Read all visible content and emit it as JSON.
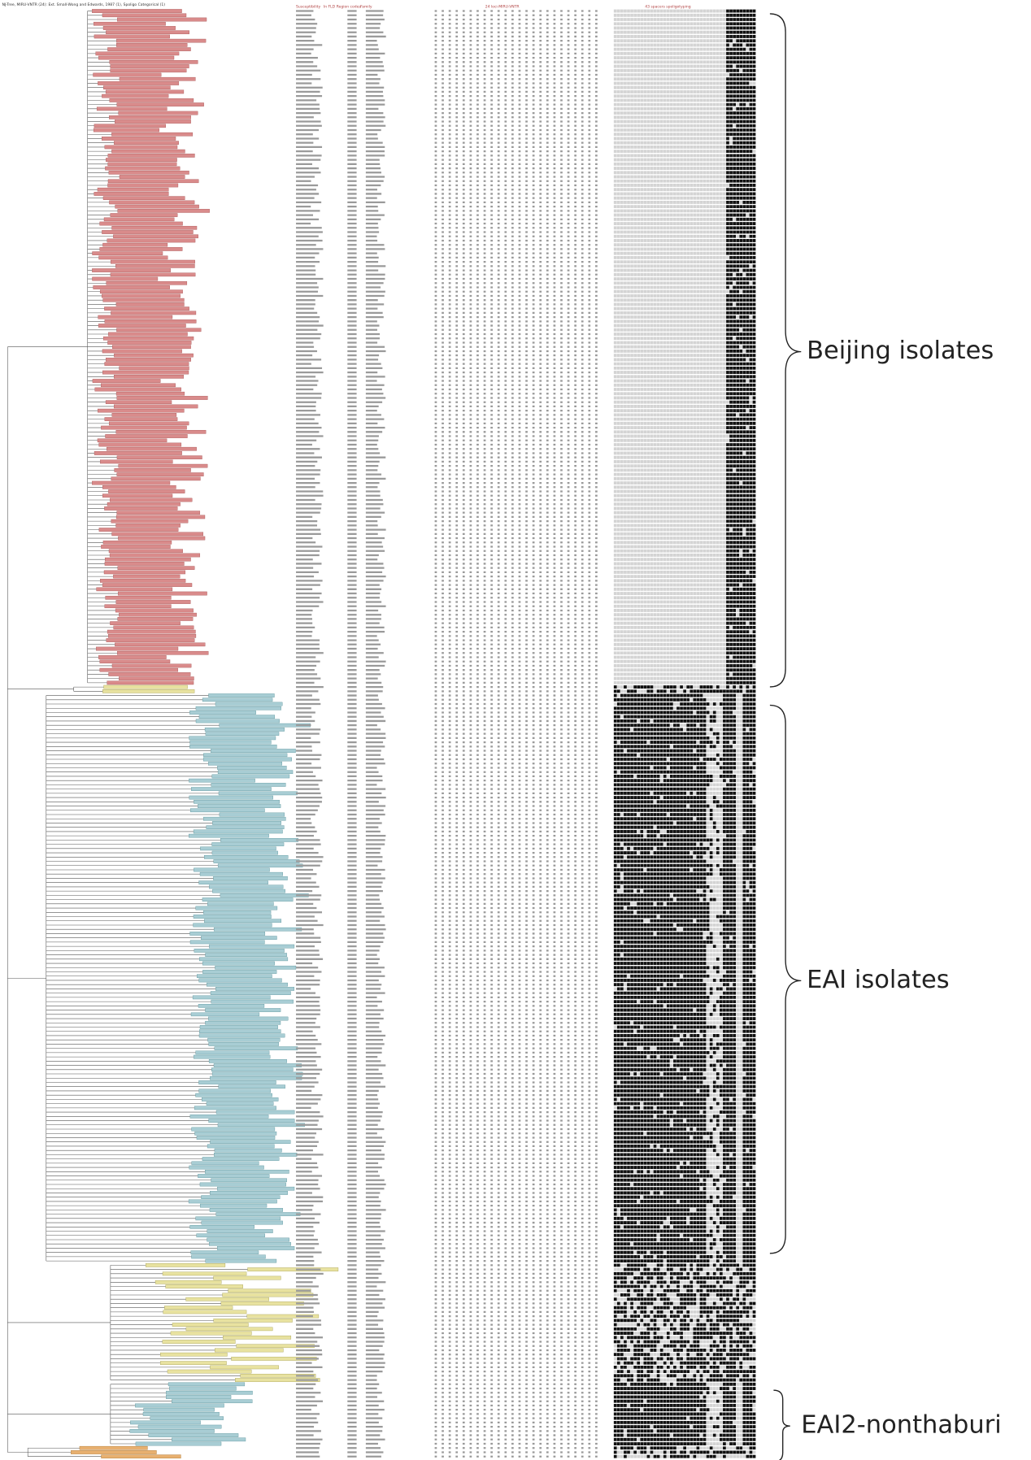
{
  "figure": {
    "title": "NJ-Tree, MIRU-VNTR (24): Ext. Small-Wong and Edwards, 1987 (1), Spoligo Categorical (1)",
    "column_headers": [
      "Susceptibility",
      "In FLD",
      "Region codes",
      "Family",
      "24 loci-MIRU-VNTR",
      "43 spacers spoligotyping"
    ],
    "groups": [
      {
        "label": "Beijing isolates"
      },
      {
        "label": "EAI isolates"
      },
      {
        "label": "EAI2-nonthaburi"
      }
    ]
  }
}
